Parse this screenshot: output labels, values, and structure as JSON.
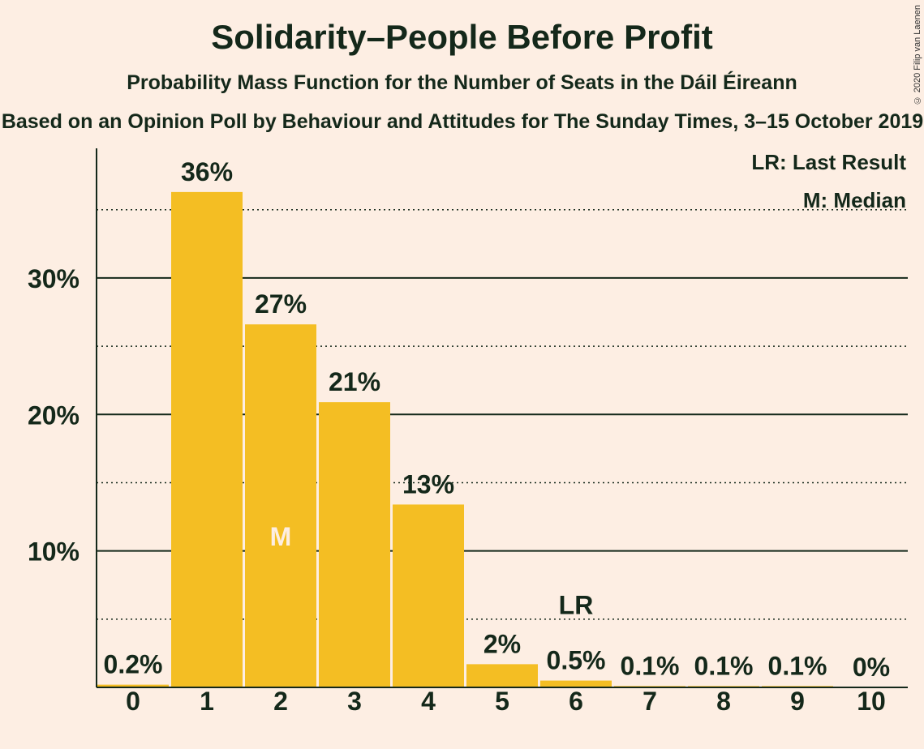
{
  "chart_data": {
    "type": "bar",
    "title": "Solidarity–People Before Profit",
    "subtitle": "Probability Mass Function for the Number of Seats in the Dáil Éireann",
    "subsubtitle": "Based on an Opinion Poll by Behaviour and Attitudes for The Sunday Times, 3–15 October 2019",
    "copyright": "© 2020 Filip van Laenen",
    "categories": [
      "0",
      "1",
      "2",
      "3",
      "4",
      "5",
      "6",
      "7",
      "8",
      "9",
      "10"
    ],
    "values": [
      0.2,
      36.3,
      26.6,
      20.9,
      13.4,
      1.7,
      0.5,
      0.1,
      0.1,
      0.1,
      0
    ],
    "value_labels": [
      "0.2%",
      "36%",
      "27%",
      "21%",
      "13%",
      "2%",
      "0.5%",
      "0.1%",
      "0.1%",
      "0.1%",
      "0%"
    ],
    "ylim": [
      0,
      39.5
    ],
    "yticks": [
      10,
      20,
      30
    ],
    "ytick_labels": [
      "10%",
      "20%",
      "30%"
    ],
    "minor_gridlines": [
      5,
      15,
      25,
      35
    ],
    "median_index": 2,
    "median_marker": "M",
    "last_result_index": 6,
    "last_result_marker": "LR",
    "legend": [
      "LR: Last Result",
      "M: Median"
    ],
    "legend_position": "top-right",
    "bar_color": "#F4BE23",
    "median_text_color": "#FDEEE3"
  }
}
